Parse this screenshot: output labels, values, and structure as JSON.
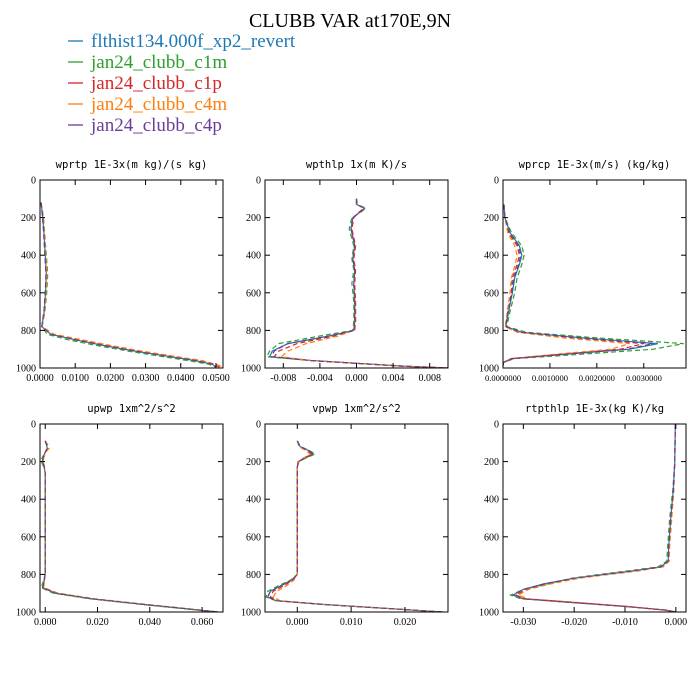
{
  "title": "CLUBB VAR at170E,9N",
  "legend": [
    {
      "label": "flthist134.000f_xp2_revert",
      "color": "#1f77b4"
    },
    {
      "label": "jan24_clubb_c1m",
      "color": "#2ca02c"
    },
    {
      "label": "jan24_clubb_c1p",
      "color": "#d62728"
    },
    {
      "label": "jan24_clubb_c4m",
      "color": "#ff7f0e"
    },
    {
      "label": "jan24_clubb_c4p",
      "color": "#6a3d9a"
    }
  ],
  "chart_data": [
    {
      "type": "line",
      "title": "wprtp  1E-3x(m kg)/(s kg)",
      "xlim": [
        0.0,
        0.052
      ],
      "ylim": [
        1000,
        0
      ],
      "xticks": [
        0.0,
        0.01,
        0.02,
        0.03,
        0.04,
        0.05
      ],
      "xticklabels": [
        "0.0000",
        "0.0100",
        "0.0200",
        "0.0300",
        "0.0400",
        "0.0500"
      ],
      "yticks": [
        0,
        200,
        400,
        600,
        800,
        1000
      ],
      "yticklabels": [
        "0",
        "200",
        "400",
        "600",
        "800",
        "1000"
      ],
      "y": [
        120,
        200,
        300,
        400,
        500,
        600,
        700,
        780,
        820,
        850,
        880,
        910,
        940,
        960,
        980,
        995
      ],
      "series": [
        {
          "name": "flthist134.000f_xp2_revert",
          "values": [
            0.0003,
            0.0008,
            0.0012,
            0.0015,
            0.0018,
            0.0016,
            0.0012,
            0.0005,
            0.003,
            0.01,
            0.018,
            0.027,
            0.037,
            0.044,
            0.049,
            0.05
          ]
        },
        {
          "name": "jan24_clubb_c1m",
          "values": [
            0.0003,
            0.001,
            0.0014,
            0.0018,
            0.0022,
            0.0019,
            0.0014,
            0.0006,
            0.002,
            0.008,
            0.016,
            0.025,
            0.035,
            0.042,
            0.048,
            0.05
          ]
        },
        {
          "name": "jan24_clubb_c1p",
          "values": [
            0.0003,
            0.0007,
            0.0011,
            0.0014,
            0.0017,
            0.0015,
            0.0011,
            0.0005,
            0.003,
            0.011,
            0.019,
            0.028,
            0.038,
            0.045,
            0.049,
            0.051
          ]
        },
        {
          "name": "jan24_clubb_c4m",
          "values": [
            0.0003,
            0.0009,
            0.0013,
            0.0016,
            0.002,
            0.0017,
            0.0013,
            0.0006,
            0.004,
            0.012,
            0.02,
            0.029,
            0.039,
            0.046,
            0.05,
            0.052
          ]
        },
        {
          "name": "jan24_clubb_c4p",
          "values": [
            0.0003,
            0.0008,
            0.0011,
            0.0014,
            0.0017,
            0.0015,
            0.0011,
            0.0005,
            0.003,
            0.01,
            0.018,
            0.027,
            0.037,
            0.044,
            0.049,
            0.05
          ]
        }
      ]
    },
    {
      "type": "line",
      "title": "wpthlp  1x(m K)/s",
      "xlim": [
        -0.01,
        0.01
      ],
      "ylim": [
        1000,
        0
      ],
      "xticks": [
        -0.008,
        -0.004,
        0.0,
        0.004,
        0.008
      ],
      "xticklabels": [
        "-0.008",
        "-0.004",
        "0.000",
        "0.004",
        "0.008"
      ],
      "yticks": [
        0,
        200,
        400,
        600,
        800,
        1000
      ],
      "yticklabels": [
        "0",
        "200",
        "400",
        "600",
        "800",
        "1000"
      ],
      "y": [
        100,
        130,
        150,
        170,
        200,
        260,
        350,
        420,
        480,
        550,
        650,
        750,
        800,
        830,
        870,
        910,
        940,
        960,
        975,
        990,
        1000
      ],
      "series": [
        {
          "name": "flthist134.000f_xp2_revert",
          "values": [
            0.0,
            0.0,
            0.0009,
            0.0004,
            -0.0004,
            -0.0006,
            -0.0002,
            -0.0004,
            -0.0002,
            -0.0003,
            -0.0002,
            -0.0002,
            -0.0003,
            -0.003,
            -0.0075,
            -0.0092,
            -0.0095,
            -0.005,
            0.0,
            0.005,
            0.01
          ]
        },
        {
          "name": "jan24_clubb_c1m",
          "values": [
            0.0,
            0.0001,
            0.001,
            0.0005,
            -0.0005,
            -0.0008,
            -0.0003,
            -0.0005,
            -0.0003,
            -0.0005,
            -0.0003,
            -0.0003,
            -0.0004,
            -0.004,
            -0.0085,
            -0.0095,
            -0.0098,
            -0.005,
            0.0,
            0.005,
            0.01
          ]
        },
        {
          "name": "jan24_clubb_c1p",
          "values": [
            0.0,
            0.0,
            0.0008,
            0.0003,
            -0.0003,
            -0.0005,
            -0.0001,
            -0.0003,
            -0.0001,
            -0.0002,
            -0.0001,
            -0.0001,
            -0.0002,
            -0.0025,
            -0.0065,
            -0.0085,
            -0.009,
            -0.005,
            0.0,
            0.005,
            0.01
          ]
        },
        {
          "name": "jan24_clubb_c4m",
          "values": [
            0.0,
            0.0,
            0.0009,
            0.0004,
            -0.0004,
            -0.0006,
            -0.0002,
            -0.0004,
            -0.0002,
            -0.0003,
            -0.0002,
            -0.0002,
            -0.0003,
            -0.002,
            -0.0055,
            -0.0075,
            -0.0082,
            -0.005,
            0.0,
            0.005,
            0.01
          ]
        },
        {
          "name": "jan24_clubb_c4p",
          "values": [
            0.0,
            0.0,
            0.0009,
            0.0004,
            -0.0004,
            -0.0006,
            -0.0002,
            -0.0004,
            -0.0002,
            -0.0003,
            -0.0002,
            -0.0002,
            -0.0003,
            -0.003,
            -0.0075,
            -0.009,
            -0.0093,
            -0.005,
            0.0,
            0.005,
            0.01
          ]
        }
      ]
    },
    {
      "type": "line",
      "title": "wprcp  1E-3x(m/s) (kg/kg)",
      "xlim": [
        0.0,
        0.0039
      ],
      "ylim": [
        1000,
        0
      ],
      "xticks": [
        0.0,
        0.001,
        0.002,
        0.003
      ],
      "xticklabels": [
        "0.0000000",
        "0.0010000",
        "0.0020000",
        "0.0030000"
      ],
      "yticks": [
        0,
        200,
        400,
        600,
        800,
        1000
      ],
      "yticklabels": [
        "0",
        "200",
        "400",
        "600",
        "800",
        "1000"
      ],
      "y": [
        130,
        200,
        280,
        350,
        400,
        450,
        520,
        600,
        700,
        780,
        810,
        840,
        870,
        900,
        930,
        950,
        970,
        990
      ],
      "series": [
        {
          "name": "flthist134.000f_xp2_revert",
          "values": [
            2e-05,
            4e-05,
            0.00015,
            0.00035,
            0.0004,
            0.00035,
            0.00025,
            0.0002,
            0.00012,
            6e-05,
            0.0004,
            0.0017,
            0.0033,
            0.0027,
            0.0012,
            0.0002,
            1e-05,
            0.0
          ]
        },
        {
          "name": "jan24_clubb_c1m",
          "values": [
            2e-05,
            4e-05,
            0.00018,
            0.0004,
            0.00045,
            0.0004,
            0.0003,
            0.00025,
            0.00015,
            8e-05,
            0.0005,
            0.002,
            0.00385,
            0.0032,
            0.0015,
            0.00025,
            1e-05,
            0.0
          ]
        },
        {
          "name": "jan24_clubb_c1p",
          "values": [
            2e-05,
            4e-05,
            0.00012,
            0.0003,
            0.00035,
            0.0003,
            0.0002,
            0.00018,
            0.0001,
            5e-05,
            0.00035,
            0.0015,
            0.003,
            0.0025,
            0.0011,
            0.00018,
            1e-05,
            0.0
          ]
        },
        {
          "name": "jan24_clubb_c4m",
          "values": [
            2e-05,
            4e-05,
            0.0001,
            0.00025,
            0.0003,
            0.00026,
            0.00018,
            0.00015,
            9e-05,
            5e-05,
            0.0003,
            0.0013,
            0.0027,
            0.0023,
            0.001,
            0.00016,
            1e-05,
            0.0
          ]
        },
        {
          "name": "jan24_clubb_c4p",
          "values": [
            2e-05,
            4e-05,
            0.00014,
            0.00033,
            0.00038,
            0.00033,
            0.00023,
            0.00019,
            0.00011,
            6e-05,
            0.0004,
            0.00165,
            0.0032,
            0.00265,
            0.00115,
            0.00019,
            1e-05,
            0.0
          ]
        }
      ]
    },
    {
      "type": "line",
      "title": "upwp  1xm^2/s^2",
      "xlim": [
        -0.002,
        0.068
      ],
      "ylim": [
        1000,
        0
      ],
      "xticks": [
        0.0,
        0.02,
        0.04,
        0.06
      ],
      "xticklabels": [
        "0.000",
        "0.020",
        "0.040",
        "0.060"
      ],
      "yticks": [
        0,
        200,
        400,
        600,
        800,
        1000
      ],
      "yticklabels": [
        "0",
        "200",
        "400",
        "600",
        "800",
        "1000"
      ],
      "y": [
        90,
        110,
        130,
        150,
        180,
        200,
        220,
        260,
        400,
        600,
        800,
        840,
        870,
        900,
        930,
        960,
        980,
        1000
      ],
      "series": [
        {
          "name": "flthist134.000f_xp2_revert",
          "values": [
            0.0,
            0.0005,
            0.0008,
            0.0,
            -0.0008,
            -0.001,
            -0.0005,
            0.0,
            0.0,
            0.0,
            0.0,
            -0.0005,
            -0.001,
            0.004,
            0.018,
            0.038,
            0.052,
            0.066
          ]
        },
        {
          "name": "jan24_clubb_c1m",
          "values": [
            0.0,
            0.0008,
            0.0012,
            0.0,
            -0.0012,
            -0.0015,
            -0.0008,
            0.0,
            0.0,
            0.0,
            0.0,
            -0.0008,
            -0.0015,
            0.003,
            0.017,
            0.037,
            0.051,
            0.066
          ]
        },
        {
          "name": "jan24_clubb_c1p",
          "values": [
            0.0,
            0.0005,
            0.0007,
            0.0,
            -0.0007,
            -0.0009,
            -0.0004,
            0.0,
            0.0,
            0.0,
            0.0,
            -0.0004,
            -0.0008,
            0.004,
            0.018,
            0.038,
            0.052,
            0.066
          ]
        },
        {
          "name": "jan24_clubb_c4m",
          "values": [
            0.0,
            0.001,
            0.0015,
            0.0002,
            -0.0006,
            -0.0008,
            -0.0004,
            0.0,
            0.0,
            0.0,
            0.0,
            -0.0003,
            -0.0006,
            0.005,
            0.019,
            0.039,
            0.053,
            0.066
          ]
        },
        {
          "name": "jan24_clubb_c4p",
          "values": [
            0.0,
            0.0005,
            0.0008,
            0.0,
            -0.0008,
            -0.001,
            -0.0005,
            0.0,
            0.0,
            0.0,
            0.0,
            -0.0005,
            -0.001,
            0.004,
            0.018,
            0.038,
            0.052,
            0.066
          ]
        }
      ]
    },
    {
      "type": "line",
      "title": "vpwp  1xm^2/s^2",
      "xlim": [
        -0.006,
        0.028
      ],
      "ylim": [
        1000,
        0
      ],
      "xticks": [
        0.0,
        0.01,
        0.02
      ],
      "xticklabels": [
        "0.000",
        "0.010",
        "0.020"
      ],
      "yticks": [
        0,
        200,
        400,
        600,
        800,
        1000
      ],
      "yticklabels": [
        "0",
        "200",
        "400",
        "600",
        "800",
        "1000"
      ],
      "y": [
        90,
        120,
        140,
        160,
        180,
        200,
        230,
        300,
        500,
        700,
        800,
        830,
        860,
        890,
        920,
        940,
        960,
        980,
        1000
      ],
      "series": [
        {
          "name": "flthist134.000f_xp2_revert",
          "values": [
            0.0,
            0.0005,
            0.002,
            0.003,
            0.0015,
            0.0002,
            0.0,
            0.0,
            0.0,
            0.0,
            0.0,
            -0.001,
            -0.003,
            -0.005,
            -0.0055,
            -0.004,
            0.005,
            0.016,
            0.027
          ]
        },
        {
          "name": "jan24_clubb_c1m",
          "values": [
            0.0,
            0.0006,
            0.0022,
            0.0033,
            0.0017,
            0.0003,
            0.0,
            0.0,
            0.0,
            0.0,
            0.0,
            -0.0012,
            -0.0035,
            -0.0055,
            -0.0058,
            -0.004,
            0.005,
            0.016,
            0.027
          ]
        },
        {
          "name": "jan24_clubb_c1p",
          "values": [
            0.0,
            0.0004,
            0.0018,
            0.0027,
            0.0013,
            0.0002,
            0.0,
            0.0,
            0.0,
            0.0,
            0.0,
            -0.0008,
            -0.0025,
            -0.0045,
            -0.005,
            -0.0035,
            0.005,
            0.016,
            0.027
          ]
        },
        {
          "name": "jan24_clubb_c4m",
          "values": [
            0.0,
            0.0003,
            0.0015,
            0.0024,
            0.0012,
            0.0001,
            0.0,
            0.0,
            0.0,
            0.0,
            0.0,
            -0.0006,
            -0.002,
            -0.0038,
            -0.0045,
            -0.0032,
            0.005,
            0.016,
            0.027
          ]
        },
        {
          "name": "jan24_clubb_c4p",
          "values": [
            0.0,
            0.0005,
            0.002,
            0.003,
            0.0015,
            0.0002,
            0.0,
            0.0,
            0.0,
            0.0,
            0.0,
            -0.001,
            -0.003,
            -0.005,
            -0.0055,
            -0.004,
            0.005,
            0.016,
            0.027
          ]
        }
      ]
    },
    {
      "type": "line",
      "title": "rtpthlp  1E-3x(kg K)/kg",
      "xlim": [
        -0.034,
        0.002
      ],
      "ylim": [
        1000,
        0
      ],
      "xticks": [
        -0.03,
        -0.02,
        -0.01,
        0.0
      ],
      "xticklabels": [
        "-0.030",
        "-0.020",
        "-0.010",
        "0.000"
      ],
      "yticks": [
        0,
        200,
        400,
        600,
        800,
        1000
      ],
      "yticklabels": [
        "0",
        "200",
        "400",
        "600",
        "800",
        "1000"
      ],
      "y": [
        0,
        200,
        350,
        500,
        650,
        730,
        760,
        780,
        800,
        820,
        850,
        880,
        910,
        930,
        950,
        970,
        990,
        1000
      ],
      "series": [
        {
          "name": "flthist134.000f_xp2_revert",
          "values": [
            -0.0001,
            -0.0002,
            -0.0005,
            -0.001,
            -0.0014,
            -0.0015,
            -0.003,
            -0.008,
            -0.014,
            -0.02,
            -0.026,
            -0.03,
            -0.032,
            -0.03,
            -0.02,
            -0.01,
            -0.002,
            0.0
          ]
        },
        {
          "name": "jan24_clubb_c1m",
          "values": [
            -0.0001,
            -0.0002,
            -0.0006,
            -0.0012,
            -0.0016,
            -0.0018,
            -0.0035,
            -0.009,
            -0.015,
            -0.0205,
            -0.025,
            -0.03,
            -0.0325,
            -0.0305,
            -0.0205,
            -0.01,
            -0.002,
            0.0
          ]
        },
        {
          "name": "jan24_clubb_c1p",
          "values": [
            -0.0001,
            -0.0002,
            -0.0004,
            -0.0009,
            -0.0013,
            -0.0014,
            -0.0028,
            -0.0075,
            -0.0135,
            -0.0195,
            -0.0255,
            -0.0295,
            -0.0315,
            -0.0295,
            -0.0195,
            -0.0098,
            -0.002,
            0.0
          ]
        },
        {
          "name": "jan24_clubb_c4m",
          "values": [
            -0.0001,
            -0.0002,
            -0.0004,
            -0.0008,
            -0.0012,
            -0.0013,
            -0.0025,
            -0.007,
            -0.013,
            -0.019,
            -0.0245,
            -0.029,
            -0.031,
            -0.029,
            -0.019,
            -0.0095,
            -0.002,
            0.0
          ]
        },
        {
          "name": "jan24_clubb_c4p",
          "values": [
            -0.0001,
            -0.0002,
            -0.0005,
            -0.001,
            -0.0014,
            -0.0015,
            -0.003,
            -0.008,
            -0.014,
            -0.02,
            -0.0258,
            -0.03,
            -0.032,
            -0.03,
            -0.02,
            -0.01,
            -0.002,
            0.0
          ]
        }
      ]
    }
  ]
}
